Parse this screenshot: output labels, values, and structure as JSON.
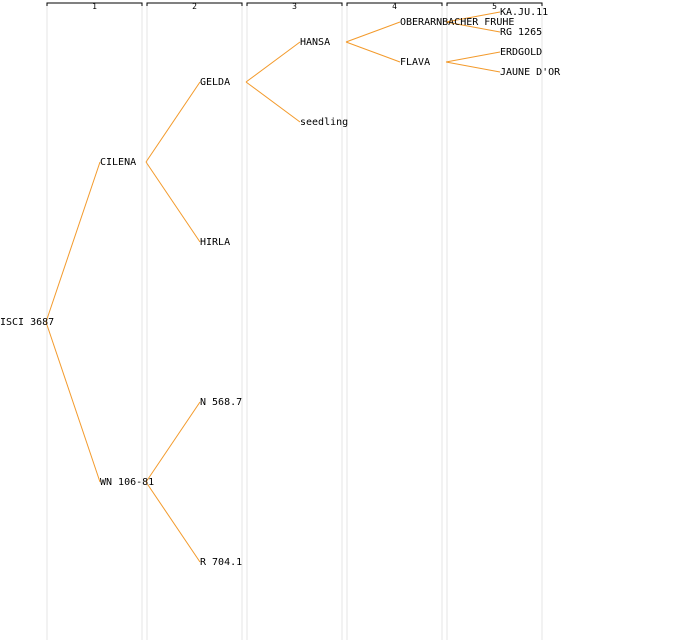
{
  "generations": [
    "1",
    "2",
    "3",
    "4",
    "5"
  ],
  "colors": {
    "edge": "#f39a2b",
    "column_line": "#e6e6e6",
    "text": "#000000"
  },
  "nodes": [
    {
      "id": "n0",
      "label": "ISCI 3687",
      "generation": 0,
      "slot": 0,
      "span": 32
    },
    {
      "id": "n1",
      "label": "CILENA",
      "generation": 1,
      "slot": 0,
      "span": 16
    },
    {
      "id": "n2",
      "label": "WN 106-81",
      "generation": 1,
      "slot": 16,
      "span": 16
    },
    {
      "id": "n3",
      "label": "GELDA",
      "generation": 2,
      "slot": 0,
      "span": 8
    },
    {
      "id": "n4",
      "label": "HIRLA",
      "generation": 2,
      "slot": 8,
      "span": 8
    },
    {
      "id": "n5",
      "label": "N 568.7",
      "generation": 2,
      "slot": 16,
      "span": 8
    },
    {
      "id": "n6",
      "label": "R 704.1",
      "generation": 2,
      "slot": 24,
      "span": 8
    },
    {
      "id": "n7",
      "label": "HANSA",
      "generation": 3,
      "slot": 0,
      "span": 4
    },
    {
      "id": "n8",
      "label": "seedling",
      "generation": 3,
      "slot": 4,
      "span": 4
    },
    {
      "id": "n9",
      "label": "OBERARNBACHER FRUHE",
      "generation": 4,
      "slot": 0,
      "span": 2
    },
    {
      "id": "n10",
      "label": "FLAVA",
      "generation": 4,
      "slot": 2,
      "span": 2
    },
    {
      "id": "n11",
      "label": "KA.JU.11",
      "generation": 5,
      "slot": 0,
      "span": 1
    },
    {
      "id": "n12",
      "label": "RG 1265",
      "generation": 5,
      "slot": 1,
      "span": 1
    },
    {
      "id": "n13",
      "label": "ERDGOLD",
      "generation": 5,
      "slot": 2,
      "span": 1
    },
    {
      "id": "n14",
      "label": "JAUNE D'OR",
      "generation": 5,
      "slot": 3,
      "span": 1
    }
  ],
  "edges": [
    [
      "n0",
      "n1"
    ],
    [
      "n0",
      "n2"
    ],
    [
      "n1",
      "n3"
    ],
    [
      "n1",
      "n4"
    ],
    [
      "n2",
      "n5"
    ],
    [
      "n2",
      "n6"
    ],
    [
      "n3",
      "n7"
    ],
    [
      "n3",
      "n8"
    ],
    [
      "n7",
      "n9"
    ],
    [
      "n7",
      "n10"
    ],
    [
      "n9",
      "n11"
    ],
    [
      "n9",
      "n12"
    ],
    [
      "n10",
      "n13"
    ],
    [
      "n10",
      "n14"
    ]
  ]
}
